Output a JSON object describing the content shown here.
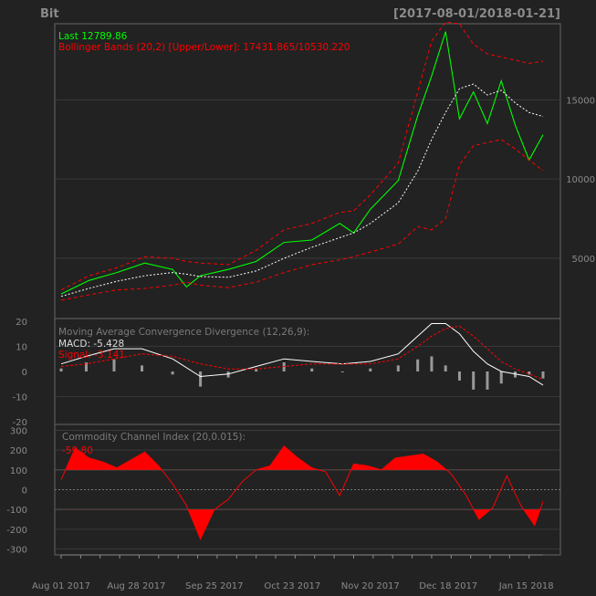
{
  "header": {
    "symbol": "Bit",
    "range": "[2017-08-01/2018-01-21]"
  },
  "colors": {
    "background": "#222222",
    "panel_border": "#666666",
    "grid": "#3a3a3a",
    "text": "#8a8a8a",
    "price": "#00ff00",
    "bands": "#ff0000",
    "ma": "#ffffff",
    "macd": "#ffffff",
    "signal": "#ff0000",
    "hist": "#999999",
    "cci": "#ff0000"
  },
  "chart_data": [
    {
      "type": "line",
      "panel": "price",
      "legend": {
        "last": "Last 12789.86",
        "bands": "Bollinger Bands (20,2) [Upper/Lower]: 17431.865/10530.220"
      },
      "x_dates": [
        "2017-08-01",
        "2017-08-11",
        "2017-08-21",
        "2017-08-31",
        "2017-09-10",
        "2017-09-15",
        "2017-09-20",
        "2017-09-30",
        "2017-10-10",
        "2017-10-20",
        "2017-10-30",
        "2017-11-09",
        "2017-11-14",
        "2017-11-20",
        "2017-11-30",
        "2017-12-07",
        "2017-12-12",
        "2017-12-17",
        "2017-12-22",
        "2017-12-27",
        "2018-01-01",
        "2018-01-06",
        "2018-01-11",
        "2018-01-16",
        "2018-01-21"
      ],
      "series": [
        {
          "role": "close",
          "values": [
            2750,
            3600,
            4100,
            4700,
            4300,
            3200,
            3900,
            4300,
            4800,
            6000,
            6150,
            7200,
            6600,
            8100,
            9900,
            14000,
            16500,
            19300,
            13800,
            15500,
            13500,
            16200,
            13400,
            11200,
            12790
          ]
        },
        {
          "role": "bollinger_upper",
          "values": [
            3000,
            3900,
            4400,
            5100,
            5000,
            4800,
            4700,
            4600,
            5500,
            6800,
            7200,
            7900,
            8000,
            9000,
            11000,
            15500,
            18700,
            19900,
            19800,
            18500,
            17900,
            17700,
            17500,
            17300,
            17432
          ]
        },
        {
          "role": "bollinger_mid",
          "values": [
            2600,
            3100,
            3550,
            3900,
            4100,
            4000,
            3850,
            3800,
            4200,
            5000,
            5700,
            6300,
            6600,
            7200,
            8500,
            10500,
            12500,
            14200,
            15700,
            16000,
            15300,
            15600,
            14800,
            14200,
            13950
          ]
        },
        {
          "role": "bollinger_lower",
          "values": [
            2350,
            2700,
            3000,
            3100,
            3300,
            3500,
            3300,
            3150,
            3500,
            4100,
            4600,
            4900,
            5100,
            5400,
            5900,
            7000,
            6800,
            7500,
            10900,
            12100,
            12300,
            12500,
            11900,
            11200,
            10530
          ]
        }
      ],
      "y_ticks": [
        5000,
        10000,
        15000
      ]
    },
    {
      "type": "line",
      "panel": "macd",
      "title": "Moving Average Convergence Divergence (12,26,9):",
      "legend": {
        "macd": "MACD: -5.428",
        "signal": "Signal: -3.141"
      },
      "x_dates": [
        "2017-08-01",
        "2017-08-10",
        "2017-08-20",
        "2017-08-30",
        "2017-09-10",
        "2017-09-20",
        "2017-09-30",
        "2017-10-10",
        "2017-10-20",
        "2017-10-30",
        "2017-11-10",
        "2017-11-20",
        "2017-11-30",
        "2017-12-07",
        "2017-12-12",
        "2017-12-17",
        "2017-12-22",
        "2017-12-27",
        "2018-01-01",
        "2018-01-06",
        "2018-01-11",
        "2018-01-16",
        "2018-01-21"
      ],
      "series": [
        {
          "role": "macd",
          "values": [
            3,
            6,
            9,
            9,
            5,
            -2,
            -1,
            2,
            5,
            4,
            3,
            4,
            7,
            14,
            19,
            19,
            15,
            8,
            3,
            0,
            -1,
            -2,
            -5.4
          ]
        },
        {
          "role": "signal",
          "values": [
            2,
            3,
            5,
            7,
            6,
            3,
            1,
            1,
            2,
            3,
            3,
            3,
            5,
            10,
            14,
            17,
            18,
            14,
            9,
            4,
            1,
            -1,
            -3.1
          ]
        }
      ],
      "y_ticks": [
        -20,
        -10,
        0,
        10,
        20
      ]
    },
    {
      "type": "area",
      "panel": "cci",
      "title": "Commodity Channel Index (20,0.015):",
      "legend": {
        "value": "-59.80"
      },
      "x_dates": [
        "2017-08-01",
        "2017-08-06",
        "2017-08-11",
        "2017-08-16",
        "2017-08-21",
        "2017-08-26",
        "2017-08-31",
        "2017-09-05",
        "2017-09-10",
        "2017-09-15",
        "2017-09-20",
        "2017-09-25",
        "2017-09-30",
        "2017-10-05",
        "2017-10-10",
        "2017-10-15",
        "2017-10-20",
        "2017-10-25",
        "2017-10-30",
        "2017-11-04",
        "2017-11-09",
        "2017-11-14",
        "2017-11-19",
        "2017-11-24",
        "2017-11-29",
        "2017-12-04",
        "2017-12-09",
        "2017-12-14",
        "2017-12-19",
        "2017-12-24",
        "2017-12-29",
        "2018-01-03",
        "2018-01-08",
        "2018-01-13",
        "2018-01-18",
        "2018-01-21"
      ],
      "values": [
        50,
        210,
        160,
        140,
        110,
        150,
        190,
        120,
        30,
        -80,
        -250,
        -100,
        -50,
        40,
        100,
        120,
        220,
        160,
        110,
        90,
        -30,
        130,
        120,
        100,
        160,
        170,
        180,
        140,
        80,
        -20,
        -150,
        -90,
        70,
        -80,
        -180,
        -60
      ],
      "y_ticks": [
        -300,
        -200,
        -100,
        0,
        100,
        200,
        300
      ]
    }
  ],
  "x_axis": {
    "labels": [
      "Aug 01 2017",
      "Aug 28 2017",
      "Sep 25 2017",
      "Oct 23 2017",
      "Nov 20 2017",
      "Dec 18 2017",
      "Jan 15 2018"
    ],
    "label_dates": [
      "2017-08-01",
      "2017-08-28",
      "2017-09-25",
      "2017-10-23",
      "2017-11-20",
      "2017-12-18",
      "2018-01-15"
    ]
  }
}
